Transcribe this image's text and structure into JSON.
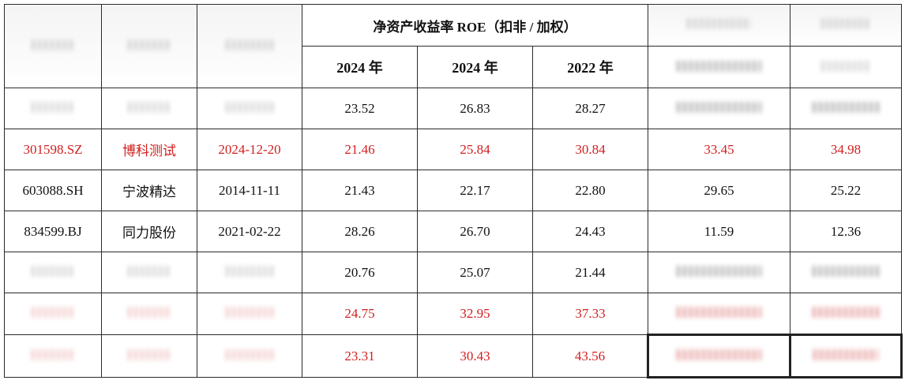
{
  "table": {
    "group_header": "净资产收益率 ROE（扣非 / 加权）",
    "years": [
      "2024 年",
      "2024 年",
      "2022 年"
    ],
    "rows": [
      {
        "code": "",
        "name": "",
        "date": "",
        "v1": "23.52",
        "v2": "26.83",
        "v3": "28.27",
        "v4": "",
        "v5": "",
        "red": false,
        "blurred": true
      },
      {
        "code": "301598.SZ",
        "name": "博科测试",
        "date": "2024-12-20",
        "v1": "21.46",
        "v2": "25.84",
        "v3": "30.84",
        "v4": "33.45",
        "v5": "34.98",
        "red": true,
        "blurred": false
      },
      {
        "code": "603088.SH",
        "name": "宁波精达",
        "date": "2014-11-11",
        "v1": "21.43",
        "v2": "22.17",
        "v3": "22.80",
        "v4": "29.65",
        "v5": "25.22",
        "red": false,
        "blurred": false
      },
      {
        "code": "834599.BJ",
        "name": "同力股份",
        "date": "2021-02-22",
        "v1": "28.26",
        "v2": "26.70",
        "v3": "24.43",
        "v4": "11.59",
        "v5": "12.36",
        "red": false,
        "blurred": false
      },
      {
        "code": "",
        "name": "",
        "date": "",
        "v1": "20.76",
        "v2": "25.07",
        "v3": "21.44",
        "v4": "",
        "v5": "",
        "red": false,
        "blurred": true
      },
      {
        "code": "",
        "name": "",
        "date": "",
        "v1": "24.75",
        "v2": "32.95",
        "v3": "37.33",
        "v4": "",
        "v5": "",
        "red": true,
        "blurred": true
      },
      {
        "code": "",
        "name": "",
        "date": "",
        "v1": "23.31",
        "v2": "30.43",
        "v3": "43.56",
        "v4": "",
        "v5": "",
        "red": true,
        "blurred": true
      }
    ]
  }
}
